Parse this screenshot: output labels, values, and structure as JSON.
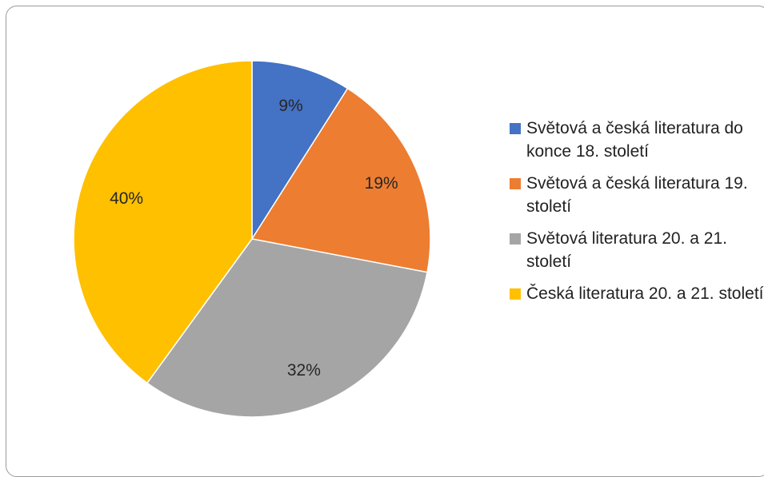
{
  "chart_data": {
    "type": "pie",
    "title": "",
    "start_angle_deg": 0,
    "direction": "clockwise",
    "legend_position": "right",
    "slices": [
      {
        "label": "Světová a česká literatura do konce 18. století",
        "value": 9,
        "display": "9%",
        "color": "#4472C4"
      },
      {
        "label": "Světová a česká literatura 19. století",
        "value": 19,
        "display": "19%",
        "color": "#ED7D31"
      },
      {
        "label": "Světová literatura 20. a 21. století",
        "value": 32,
        "display": "32%",
        "color": "#A5A5A5"
      },
      {
        "label": "Česká literatura 20. a 21. století",
        "value": 40,
        "display": "40%",
        "color": "#FFC000"
      }
    ]
  }
}
